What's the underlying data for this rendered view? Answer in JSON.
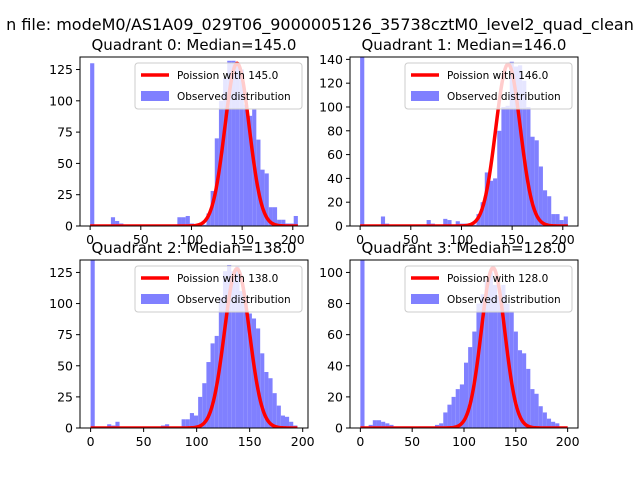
{
  "figure": {
    "suptitle": "n file: modeM0/AS1A09_029T06_9000005126_35738cztM0_level2_quad_clean"
  },
  "colors": {
    "hist": "#8080ff",
    "poisson": "#ff0000",
    "axes": "#000000"
  },
  "chart_data": [
    {
      "type": "bar",
      "title": "Quadrant 0: Median=145.0",
      "median": 145.0,
      "legend_position": "top-right",
      "legend": [
        "Poission with 145.0",
        "Observed distribution"
      ],
      "xlim": [
        -10,
        215
      ],
      "ylim": [
        0,
        135
      ],
      "xticks": [
        0,
        50,
        100,
        150,
        200
      ],
      "yticks": [
        0,
        25,
        50,
        75,
        100,
        125
      ],
      "hist": {
        "bin_edges": [
          0,
          4.1,
          8.2,
          12.3,
          16.4,
          20.5,
          24.6,
          28.7,
          32.8,
          36.9,
          41,
          45.1,
          49.2,
          53.3,
          57.4,
          61.5,
          65.6,
          69.7,
          73.8,
          77.9,
          82,
          86.1,
          90.2,
          94.3,
          98.4,
          102.5,
          106.6,
          110.7,
          114.8,
          118.9,
          123,
          127.1,
          131.2,
          135.3,
          139.4,
          143.5,
          147.6,
          151.7,
          155.8,
          159.9,
          164,
          168.1,
          172.2,
          176.3,
          180.4,
          184.5,
          188.6,
          192.7,
          196.8,
          200.9,
          205
        ],
        "counts": [
          130,
          0,
          0,
          1,
          1,
          7,
          4,
          2,
          0,
          0,
          0,
          0,
          0,
          0,
          0,
          0,
          0,
          0,
          0,
          0,
          0,
          7,
          7,
          8,
          2,
          1,
          1,
          1,
          10,
          28,
          70,
          100,
          118,
          132,
          132,
          128,
          125,
          97,
          88,
          93,
          69,
          45,
          42,
          15,
          15,
          5,
          5,
          2,
          2,
          8
        ]
      },
      "poisson": {
        "mean": 145.0,
        "peak": 130,
        "x_start": 0,
        "x_end": 205
      }
    },
    {
      "type": "bar",
      "title": "Quadrant 1: Median=146.0",
      "median": 146.0,
      "legend_position": "top-right",
      "legend": [
        "Poission with 146.0",
        "Observed distribution"
      ],
      "xlim": [
        -10,
        215
      ],
      "ylim": [
        0,
        142
      ],
      "xticks": [
        0,
        50,
        100,
        150,
        200
      ],
      "yticks": [
        0,
        20,
        40,
        60,
        80,
        100,
        120,
        140
      ],
      "hist": {
        "bin_edges": [
          0,
          4.1,
          8.2,
          12.3,
          16.4,
          20.5,
          24.6,
          28.7,
          32.8,
          36.9,
          41,
          45.1,
          49.2,
          53.3,
          57.4,
          61.5,
          65.6,
          69.7,
          73.8,
          77.9,
          82,
          86.1,
          90.2,
          94.3,
          98.4,
          102.5,
          106.6,
          110.7,
          114.8,
          118.9,
          123,
          127.1,
          131.2,
          135.3,
          139.4,
          143.5,
          147.6,
          151.7,
          155.8,
          159.9,
          164,
          168.1,
          172.2,
          176.3,
          180.4,
          184.5,
          188.6,
          192.7,
          196.8,
          200.9,
          205
        ],
        "counts": [
          142,
          0,
          0,
          1,
          1,
          8,
          2,
          1,
          0,
          0,
          0,
          0,
          0,
          0,
          0,
          0,
          5,
          2,
          1,
          1,
          6,
          5,
          0,
          4,
          2,
          2,
          1,
          1,
          10,
          20,
          45,
          38,
          40,
          80,
          100,
          101,
          138,
          134,
          135,
          122,
          100,
          75,
          72,
          50,
          30,
          25,
          10,
          10,
          5,
          8
        ]
      },
      "poisson": {
        "mean": 146.0,
        "peak": 136,
        "x_start": 0,
        "x_end": 205
      }
    },
    {
      "type": "bar",
      "title": "Quadrant 2: Median=138.0",
      "median": 138.0,
      "legend_position": "top-right",
      "legend": [
        "Poission with 138.0",
        "Observed distribution"
      ],
      "xlim": [
        -10,
        205
      ],
      "ylim": [
        0,
        135
      ],
      "xticks": [
        0,
        50,
        100,
        150,
        200
      ],
      "yticks": [
        0,
        25,
        50,
        75,
        100,
        125
      ],
      "hist": {
        "bin_edges": [
          0,
          3.9,
          7.8,
          11.7,
          15.6,
          19.5,
          23.4,
          27.3,
          31.2,
          35.1,
          39,
          42.9,
          46.8,
          50.7,
          54.6,
          58.5,
          62.4,
          66.3,
          70.2,
          74.1,
          78,
          81.9,
          85.8,
          89.7,
          93.6,
          97.5,
          101.4,
          105.3,
          109.2,
          113.1,
          117,
          120.9,
          124.8,
          128.7,
          132.6,
          136.5,
          140.4,
          144.3,
          148.2,
          152.1,
          156,
          159.9,
          163.8,
          167.7,
          171.6,
          175.5,
          179.4,
          183.3,
          187.2,
          191.1,
          195
        ],
        "counts": [
          135,
          0,
          0,
          1,
          3,
          2,
          5,
          1,
          0,
          0,
          0,
          1,
          1,
          0,
          0,
          0,
          0,
          2,
          3,
          1,
          1,
          1,
          7,
          7,
          12,
          10,
          25,
          36,
          53,
          68,
          74,
          105,
          126,
          131,
          126,
          130,
          110,
          105,
          92,
          88,
          80,
          60,
          45,
          40,
          28,
          18,
          10,
          9,
          5,
          2
        ]
      },
      "poisson": {
        "mean": 138.0,
        "peak": 128,
        "x_start": 0,
        "x_end": 195
      }
    },
    {
      "type": "bar",
      "title": "Quadrant 3: Median=128.0",
      "median": 128.0,
      "legend_position": "top-right",
      "legend": [
        "Poission with 128.0",
        "Observed distribution"
      ],
      "xlim": [
        -10,
        210
      ],
      "ylim": [
        0,
        108
      ],
      "xticks": [
        0,
        50,
        100,
        150,
        200
      ],
      "yticks": [
        0,
        20,
        40,
        60,
        80,
        100
      ],
      "hist": {
        "bin_edges": [
          0,
          4,
          8,
          12,
          16,
          20,
          24,
          28,
          32,
          36,
          40,
          44,
          48,
          52,
          56,
          60,
          64,
          68,
          72,
          76,
          80,
          84,
          88,
          92,
          96,
          100,
          104,
          108,
          112,
          116,
          120,
          124,
          128,
          132,
          136,
          140,
          144,
          148,
          152,
          156,
          160,
          164,
          168,
          172,
          176,
          180,
          184,
          188,
          192,
          196,
          200
        ],
        "counts": [
          108,
          0,
          2,
          5,
          5,
          4,
          3,
          2,
          1,
          1,
          1,
          1,
          0,
          0,
          1,
          1,
          1,
          1,
          2,
          3,
          10,
          15,
          20,
          25,
          28,
          42,
          52,
          62,
          80,
          86,
          95,
          100,
          92,
          85,
          92,
          80,
          75,
          62,
          50,
          48,
          38,
          25,
          22,
          14,
          10,
          6,
          4,
          3,
          1,
          1
        ]
      },
      "poisson": {
        "mean": 128.0,
        "peak": 103,
        "x_start": 0,
        "x_end": 200
      }
    }
  ]
}
